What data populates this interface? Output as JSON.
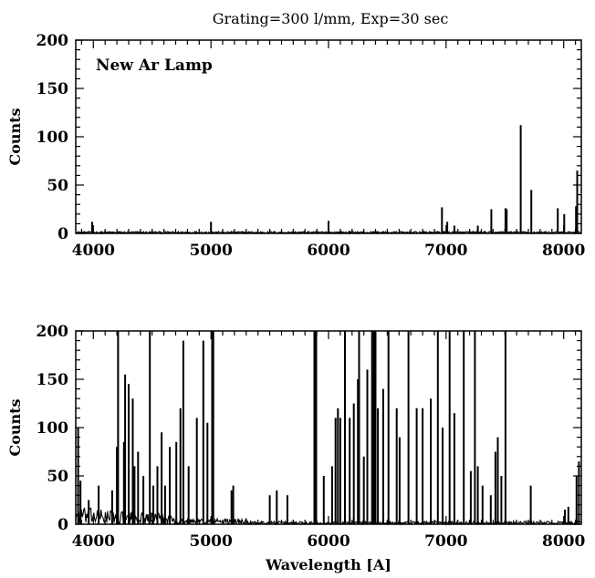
{
  "title": "Grating=300 l/mm, Exp=30 sec",
  "chart_data": [
    {
      "type": "line",
      "annotation": "New Ar Lamp",
      "xlabel": "",
      "ylabel": "Counts",
      "xlim": [
        3850,
        8150
      ],
      "ylim": [
        0,
        200
      ],
      "xticks": [
        4000,
        5000,
        6000,
        7000,
        8000
      ],
      "yticks": [
        0,
        50,
        100,
        150,
        200
      ],
      "baseline": 2,
      "lines": [
        {
          "x": 3990,
          "y": 12
        },
        {
          "x": 5000,
          "y": 12
        },
        {
          "x": 6000,
          "y": 13
        },
        {
          "x": 6965,
          "y": 27
        },
        {
          "x": 7010,
          "y": 12
        },
        {
          "x": 7070,
          "y": 8
        },
        {
          "x": 7270,
          "y": 8
        },
        {
          "x": 7385,
          "y": 25
        },
        {
          "x": 7505,
          "y": 26
        },
        {
          "x": 7515,
          "y": 25
        },
        {
          "x": 7635,
          "y": 112
        },
        {
          "x": 7725,
          "y": 45
        },
        {
          "x": 7950,
          "y": 26
        },
        {
          "x": 8005,
          "y": 20
        },
        {
          "x": 8105,
          "y": 28
        },
        {
          "x": 8115,
          "y": 65
        }
      ]
    },
    {
      "type": "line",
      "xlabel": "Wavelength [A]",
      "ylabel": "Counts",
      "xlim": [
        3850,
        8150
      ],
      "ylim": [
        0,
        200
      ],
      "xticks": [
        4000,
        5000,
        6000,
        7000,
        8000
      ],
      "yticks": [
        0,
        50,
        100,
        150,
        200
      ],
      "baseline": 5,
      "lines": [
        {
          "x": 3870,
          "y": 100
        },
        {
          "x": 3890,
          "y": 45
        },
        {
          "x": 3960,
          "y": 25
        },
        {
          "x": 4045,
          "y": 40
        },
        {
          "x": 4160,
          "y": 35
        },
        {
          "x": 4200,
          "y": 80
        },
        {
          "x": 4210,
          "y": 200
        },
        {
          "x": 4260,
          "y": 85
        },
        {
          "x": 4270,
          "y": 155
        },
        {
          "x": 4300,
          "y": 145
        },
        {
          "x": 4335,
          "y": 130
        },
        {
          "x": 4350,
          "y": 60
        },
        {
          "x": 4380,
          "y": 75
        },
        {
          "x": 4425,
          "y": 50
        },
        {
          "x": 4480,
          "y": 200
        },
        {
          "x": 4510,
          "y": 40
        },
        {
          "x": 4545,
          "y": 60
        },
        {
          "x": 4580,
          "y": 95
        },
        {
          "x": 4610,
          "y": 40
        },
        {
          "x": 4650,
          "y": 80
        },
        {
          "x": 4705,
          "y": 85
        },
        {
          "x": 4740,
          "y": 120
        },
        {
          "x": 4765,
          "y": 190
        },
        {
          "x": 4810,
          "y": 60
        },
        {
          "x": 4880,
          "y": 110
        },
        {
          "x": 4935,
          "y": 190
        },
        {
          "x": 4970,
          "y": 105
        },
        {
          "x": 5010,
          "y": 200
        },
        {
          "x": 5020,
          "y": 200
        },
        {
          "x": 5175,
          "y": 35
        },
        {
          "x": 5190,
          "y": 40
        },
        {
          "x": 5500,
          "y": 30
        },
        {
          "x": 5560,
          "y": 35
        },
        {
          "x": 5650,
          "y": 30
        },
        {
          "x": 5880,
          "y": 200
        },
        {
          "x": 5895,
          "y": 200
        },
        {
          "x": 5960,
          "y": 50
        },
        {
          "x": 6030,
          "y": 60
        },
        {
          "x": 6060,
          "y": 110
        },
        {
          "x": 6080,
          "y": 120
        },
        {
          "x": 6100,
          "y": 110
        },
        {
          "x": 6140,
          "y": 200
        },
        {
          "x": 6180,
          "y": 110
        },
        {
          "x": 6215,
          "y": 125
        },
        {
          "x": 6250,
          "y": 150
        },
        {
          "x": 6260,
          "y": 200
        },
        {
          "x": 6300,
          "y": 70
        },
        {
          "x": 6330,
          "y": 160
        },
        {
          "x": 6370,
          "y": 200
        },
        {
          "x": 6385,
          "y": 200
        },
        {
          "x": 6400,
          "y": 200
        },
        {
          "x": 6420,
          "y": 120
        },
        {
          "x": 6465,
          "y": 140
        },
        {
          "x": 6510,
          "y": 200
        },
        {
          "x": 6580,
          "y": 120
        },
        {
          "x": 6605,
          "y": 90
        },
        {
          "x": 6680,
          "y": 200
        },
        {
          "x": 6750,
          "y": 120
        },
        {
          "x": 6800,
          "y": 120
        },
        {
          "x": 6870,
          "y": 130
        },
        {
          "x": 6930,
          "y": 200
        },
        {
          "x": 6970,
          "y": 100
        },
        {
          "x": 7030,
          "y": 200
        },
        {
          "x": 7070,
          "y": 115
        },
        {
          "x": 7150,
          "y": 200
        },
        {
          "x": 7210,
          "y": 55
        },
        {
          "x": 7245,
          "y": 200
        },
        {
          "x": 7270,
          "y": 60
        },
        {
          "x": 7310,
          "y": 40
        },
        {
          "x": 7380,
          "y": 30
        },
        {
          "x": 7420,
          "y": 75
        },
        {
          "x": 7440,
          "y": 90
        },
        {
          "x": 7470,
          "y": 50
        },
        {
          "x": 7505,
          "y": 200
        },
        {
          "x": 7720,
          "y": 40
        },
        {
          "x": 8010,
          "y": 15
        },
        {
          "x": 8040,
          "y": 18
        },
        {
          "x": 8110,
          "y": 50
        },
        {
          "x": 8130,
          "y": 65
        }
      ]
    }
  ]
}
